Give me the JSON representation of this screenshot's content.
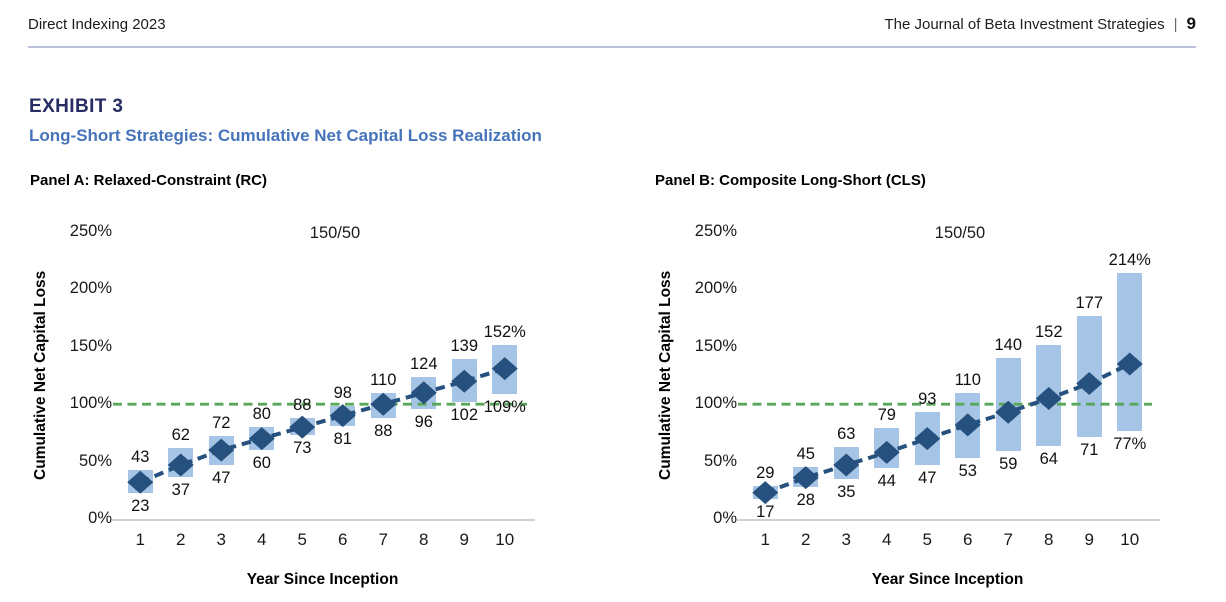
{
  "page": {
    "header": {
      "left_text": "Direct Indexing 2023",
      "journal_name": "The Journal of Beta Investment Strategies",
      "divider": "|",
      "page_number": "9"
    },
    "exhibit_label": "EXHIBIT 3",
    "exhibit_title": "Long-Short Strategies: Cumulative Net Capital Loss Realization"
  },
  "colors": {
    "bar_fill": "#a6c5e6",
    "marker_navy": "#26507d",
    "reference_green": "#58a75a",
    "exhibit_label_navy": "#272d63",
    "exhibit_title_blue": "#4674ba",
    "header_rule": "#b8c1d8",
    "axis_line_gray": "#d2d2d2",
    "text_black": "#1a1a1a"
  },
  "chart_data": [
    {
      "type": "bar",
      "panel_title": "Panel A: Relaxed-Constraint (RC)",
      "annotation": "150/50",
      "categories": [
        "1",
        "2",
        "3",
        "4",
        "5",
        "6",
        "7",
        "8",
        "9",
        "10"
      ],
      "series": [
        {
          "name": "range_high",
          "values": [
            43,
            62,
            72,
            80,
            88,
            98,
            110,
            124,
            139,
            152
          ]
        },
        {
          "name": "range_low",
          "values": [
            23,
            37,
            47,
            60,
            73,
            81,
            88,
            96,
            102,
            109
          ]
        },
        {
          "name": "median_marker",
          "values": [
            32,
            47,
            60,
            70,
            80,
            90,
            100,
            110,
            120,
            131
          ]
        }
      ],
      "labels_high": [
        "43",
        "62",
        "72",
        "80",
        "88",
        "98",
        "110",
        "124",
        "139",
        "152%"
      ],
      "labels_low": [
        "23",
        "37",
        "47",
        "60",
        "73",
        "81",
        "88",
        "96",
        "102",
        "109%"
      ],
      "xlabel": "Year Since Inception",
      "ylabel": "Cumulative Net Capital Loss",
      "ylim": [
        0,
        250
      ],
      "yticks": [
        0,
        50,
        100,
        150,
        200,
        250
      ],
      "ytick_labels": [
        "0%",
        "50%",
        "100%",
        "150%",
        "200%",
        "250%"
      ],
      "reference_line_y": 100,
      "grid": false,
      "legend": "none",
      "annotation_position": "top-center"
    },
    {
      "type": "bar",
      "panel_title": "Panel B: Composite Long-Short (CLS)",
      "annotation": "150/50",
      "categories": [
        "1",
        "2",
        "3",
        "4",
        "5",
        "6",
        "7",
        "8",
        "9",
        "10"
      ],
      "series": [
        {
          "name": "range_high",
          "values": [
            29,
            45,
            63,
            79,
            93,
            110,
            140,
            152,
            177,
            214
          ]
        },
        {
          "name": "range_low",
          "values": [
            17,
            28,
            35,
            44,
            47,
            53,
            59,
            64,
            71,
            77
          ]
        },
        {
          "name": "median_marker",
          "values": [
            23,
            36,
            47,
            58,
            70,
            82,
            93,
            105,
            118,
            135
          ]
        }
      ],
      "labels_high": [
        "29",
        "45",
        "63",
        "79",
        "93",
        "110",
        "140",
        "152",
        "177",
        "214%"
      ],
      "labels_low": [
        "17",
        "28",
        "35",
        "44",
        "47",
        "53",
        "59",
        "64",
        "71",
        "77%"
      ],
      "xlabel": "Year Since Inception",
      "ylabel": "Cumulative Net Capital Loss",
      "ylim": [
        0,
        250
      ],
      "yticks": [
        0,
        50,
        100,
        150,
        200,
        250
      ],
      "ytick_labels": [
        "0%",
        "50%",
        "100%",
        "150%",
        "200%",
        "250%"
      ],
      "reference_line_y": 100,
      "grid": false,
      "legend": "none",
      "annotation_position": "top-center"
    }
  ]
}
